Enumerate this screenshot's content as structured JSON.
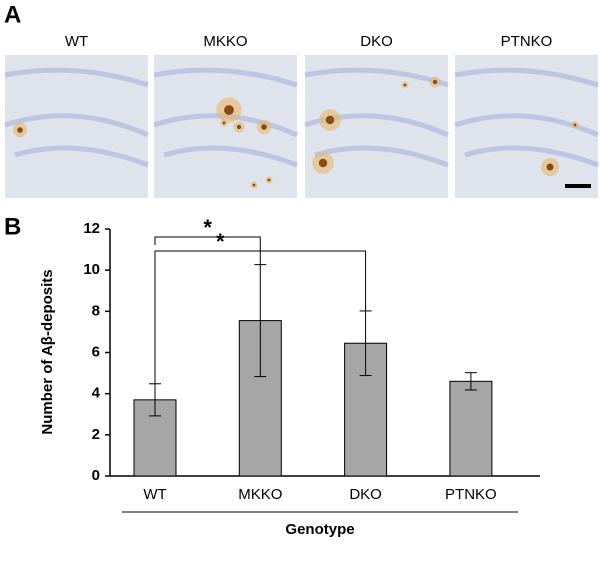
{
  "panel_a": {
    "label": "A",
    "images": [
      "WT",
      "MKKO",
      "DKO",
      "PTNKO"
    ]
  },
  "panel_b_label": "B",
  "chart_data": {
    "type": "bar",
    "x_label": "Genotype",
    "y_label": "Number of Aβ-deposits",
    "categories": [
      "WT",
      "MKKO",
      "DKO",
      "PTNKO"
    ],
    "values": [
      3.7,
      7.55,
      6.45,
      4.6
    ],
    "errors": [
      0.78,
      2.72,
      1.57,
      0.42
    ],
    "color": "#a6a6a6",
    "ylim": [
      0,
      12
    ],
    "yticks": [
      0,
      2,
      4,
      6,
      8,
      10,
      12
    ],
    "significance": [
      {
        "label": "*",
        "pair": [
          0,
          1
        ]
      },
      {
        "label": "*",
        "pair": [
          0,
          2
        ]
      }
    ]
  }
}
